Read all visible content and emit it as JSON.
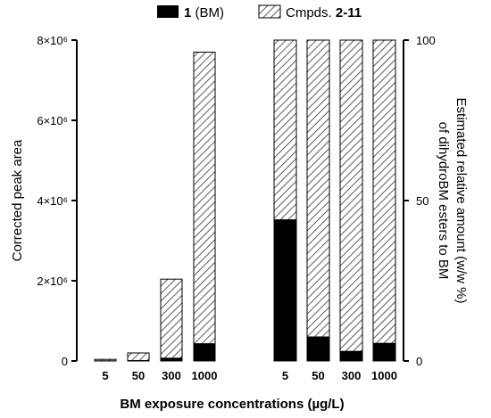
{
  "chart_data": [
    {
      "type": "bar",
      "stacked": true,
      "categories": [
        "5",
        "50",
        "300",
        "1000"
      ],
      "series": [
        {
          "name": "1 (BM)",
          "values": [
            0.005,
            0.01,
            0.07,
            0.43
          ],
          "color": "#000000",
          "pattern": "solid"
        },
        {
          "name": "Cmpds. 2-11",
          "values": [
            0.035,
            0.19,
            1.97,
            7.27
          ],
          "color": "#000000",
          "pattern": "hatched"
        }
      ],
      "ylabel": "Corrected peak area",
      "ylim": [
        0,
        8000000
      ],
      "yscale_factor": 1000000,
      "ytick_labels": [
        "0",
        "2×10⁶",
        "4×10⁶",
        "6×10⁶",
        "8×10⁶"
      ],
      "ylabel_side": "left"
    },
    {
      "type": "bar",
      "stacked": true,
      "categories": [
        "5",
        "50",
        "300",
        "1000"
      ],
      "series": [
        {
          "name": "1 (BM)",
          "values": [
            44,
            7.5,
            3,
            5.5
          ],
          "color": "#000000",
          "pattern": "solid"
        },
        {
          "name": "Cmpds. 2-11",
          "values": [
            56,
            92.5,
            97,
            94.5
          ],
          "color": "#000000",
          "pattern": "hatched"
        }
      ],
      "ylabel_line1": "Estimated relative amount (w/w %)",
      "ylabel_line2": "of dihydroBM esters to BM",
      "ylim": [
        0,
        100
      ],
      "ytick_labels": [
        "0",
        "50",
        "100"
      ],
      "ylabel_side": "right"
    }
  ],
  "legend": {
    "items": [
      {
        "bold": "1",
        "rest": " (BM)",
        "pattern": "solid"
      },
      {
        "plain": "Cmpds. ",
        "bold": "2-11",
        "pattern": "hatched"
      }
    ],
    "placement": "top"
  },
  "xlabel": "BM exposure concentrations (µg/L)"
}
